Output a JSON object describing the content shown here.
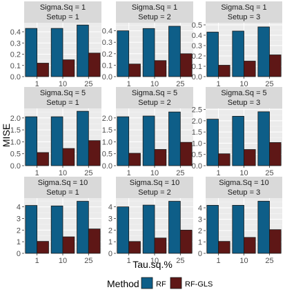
{
  "chart_data": {
    "type": "bar",
    "title": "",
    "xlabel": "Tau.sq.%",
    "ylabel": "MISE",
    "categories": [
      "1",
      "10",
      "25"
    ],
    "legend": {
      "title": "Method",
      "position": "bottom",
      "entries": [
        {
          "name": "RF",
          "color": "#0E5E88"
        },
        {
          "name": "RF-GLS",
          "color": "#5E1716"
        }
      ]
    },
    "panels": [
      {
        "strip": [
          "Sigma.Sq = 1",
          "Setup = 1"
        ],
        "ylim": [
          0,
          0.48
        ],
        "ticks": [
          0.0,
          0.1,
          0.2,
          0.3,
          0.4
        ],
        "tick_labels": [
          "0.0",
          "0.1",
          "0.2",
          "0.3",
          "0.4"
        ],
        "series": [
          {
            "name": "RF",
            "values": [
              0.43,
              0.43,
              0.46
            ]
          },
          {
            "name": "RF-GLS",
            "values": [
              0.12,
              0.15,
              0.21
            ]
          }
        ]
      },
      {
        "strip": [
          "Sigma.Sq = 1",
          "Setup = 2"
        ],
        "ylim": [
          0,
          0.47
        ],
        "ticks": [
          0.0,
          0.1,
          0.2,
          0.3,
          0.4
        ],
        "tick_labels": [
          "0.0",
          "0.1",
          "0.2",
          "0.3",
          "0.4"
        ],
        "series": [
          {
            "name": "RF",
            "values": [
              0.4,
              0.42,
              0.44
            ]
          },
          {
            "name": "RF-GLS",
            "values": [
              0.11,
              0.14,
              0.2
            ]
          }
        ]
      },
      {
        "strip": [
          "Sigma.Sq = 1",
          "Setup = 3"
        ],
        "ylim": [
          0,
          0.52
        ],
        "ticks": [
          0.0,
          0.1,
          0.2,
          0.3,
          0.4,
          0.5
        ],
        "tick_labels": [
          "0.0",
          "0.1",
          "0.2",
          "0.3",
          "0.4",
          "0.5"
        ],
        "series": [
          {
            "name": "RF",
            "values": [
              0.43,
              0.44,
              0.48
            ]
          },
          {
            "name": "RF-GLS",
            "values": [
              0.11,
              0.15,
              0.21
            ]
          }
        ]
      },
      {
        "strip": [
          "Sigma.Sq = 5",
          "Setup = 1"
        ],
        "ylim": [
          0,
          2.4
        ],
        "ticks": [
          0.0,
          0.5,
          1.0,
          1.5,
          2.0
        ],
        "tick_labels": [
          "0.0",
          "0.5",
          "1.0",
          "1.5",
          "2.0"
        ],
        "series": [
          {
            "name": "RF",
            "values": [
              2.05,
              2.05,
              2.28
            ]
          },
          {
            "name": "RF-GLS",
            "values": [
              0.55,
              0.72,
              1.05
            ]
          }
        ]
      },
      {
        "strip": [
          "Sigma.Sq = 5",
          "Setup = 2"
        ],
        "ylim": [
          0,
          2.4
        ],
        "ticks": [
          0.0,
          0.5,
          1.0,
          1.5,
          2.0
        ],
        "tick_labels": [
          "0.0",
          "0.5",
          "1.0",
          "1.5",
          "2.0"
        ],
        "series": [
          {
            "name": "RF",
            "values": [
              2.05,
              2.08,
              2.25
            ]
          },
          {
            "name": "RF-GLS",
            "values": [
              0.52,
              0.68,
              0.98
            ]
          }
        ]
      },
      {
        "strip": [
          "Sigma.Sq = 5",
          "Setup = 3"
        ],
        "ylim": [
          0,
          2.55
        ],
        "ticks": [
          0.0,
          0.5,
          1.0,
          1.5,
          2.0,
          2.5
        ],
        "tick_labels": [
          "0.0",
          "0.5",
          "1.0",
          "1.5",
          "2.0",
          "2.5"
        ],
        "series": [
          {
            "name": "RF",
            "values": [
              2.07,
              2.2,
              2.4
            ]
          },
          {
            "name": "RF-GLS",
            "values": [
              0.53,
              0.72,
              1.03
            ]
          }
        ]
      },
      {
        "strip": [
          "Sigma.Sq = 10",
          "Setup = 1"
        ],
        "ylim": [
          0,
          4.75
        ],
        "ticks": [
          0,
          1,
          2,
          3,
          4
        ],
        "tick_labels": [
          "0",
          "1",
          "2",
          "3",
          "4"
        ],
        "series": [
          {
            "name": "RF",
            "values": [
              4.12,
              4.08,
              4.48
            ]
          },
          {
            "name": "RF-GLS",
            "values": [
              1.03,
              1.42,
              2.1
            ]
          }
        ]
      },
      {
        "strip": [
          "Sigma.Sq = 10",
          "Setup = 2"
        ],
        "ylim": [
          0,
          4.75
        ],
        "ticks": [
          0,
          1,
          2,
          3,
          4
        ],
        "tick_labels": [
          "0",
          "1",
          "2",
          "3",
          "4"
        ],
        "series": [
          {
            "name": "RF",
            "values": [
              4.0,
              4.15,
              4.48
            ]
          },
          {
            "name": "RF-GLS",
            "values": [
              1.02,
              1.32,
              2.0
            ]
          }
        ]
      },
      {
        "strip": [
          "Sigma.Sq = 10",
          "Setup = 3"
        ],
        "ylim": [
          0,
          4.85
        ],
        "ticks": [
          0,
          1,
          2,
          3,
          4
        ],
        "tick_labels": [
          "0",
          "1",
          "2",
          "3",
          "4"
        ],
        "series": [
          {
            "name": "RF",
            "values": [
              4.22,
              4.22,
              4.58
            ]
          },
          {
            "name": "RF-GLS",
            "values": [
              1.05,
              1.4,
              2.08
            ]
          }
        ]
      }
    ]
  }
}
